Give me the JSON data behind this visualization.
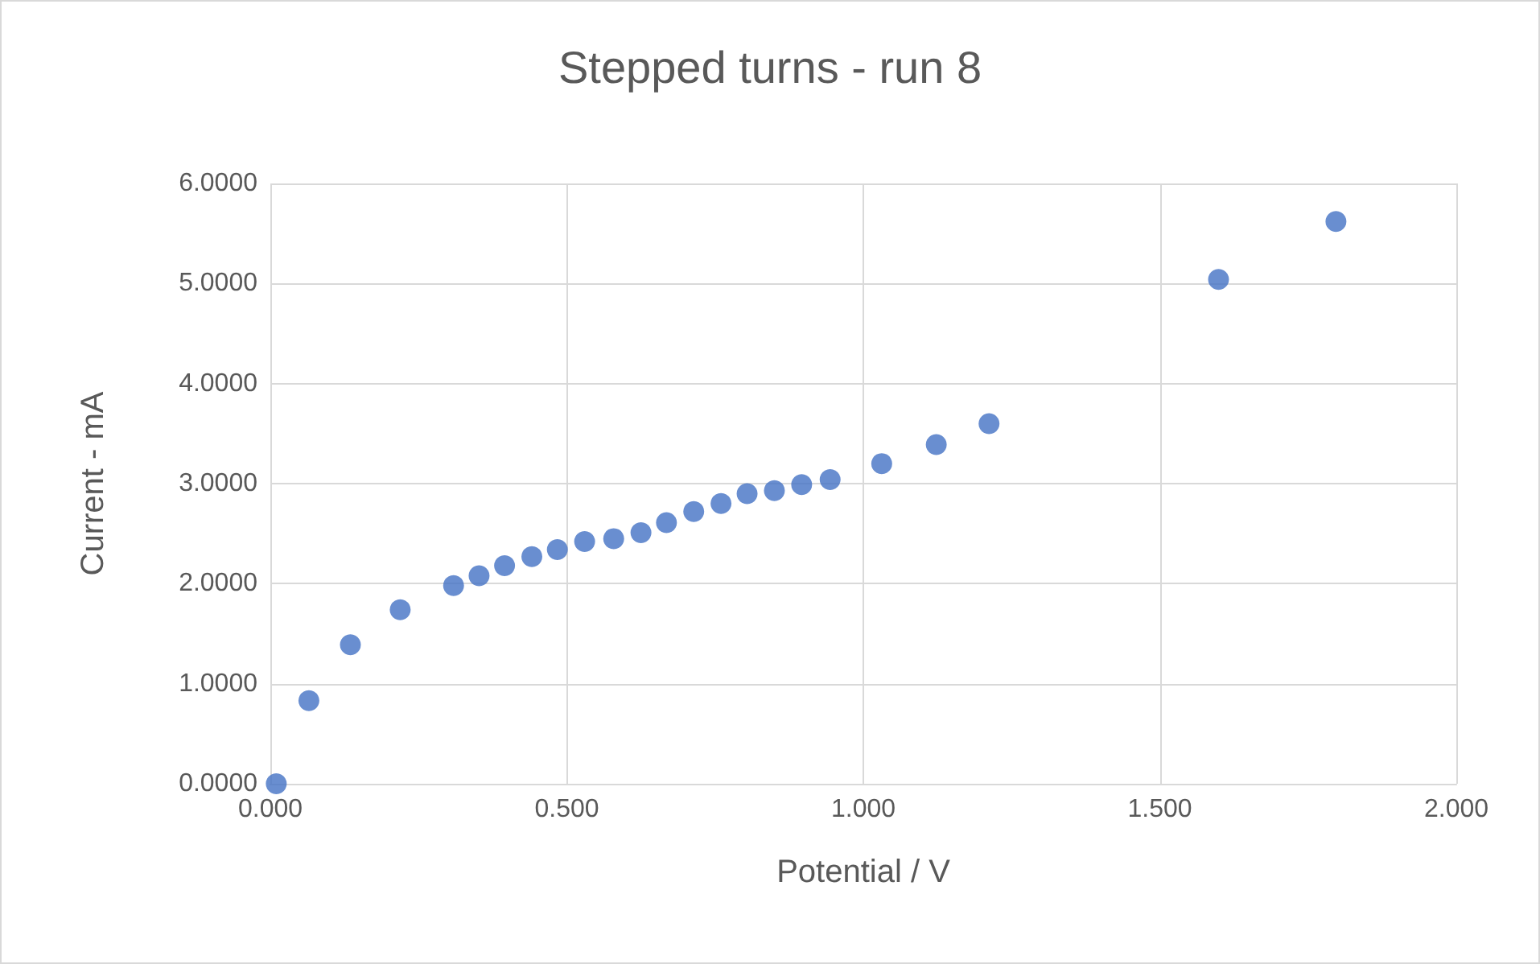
{
  "chart_data": {
    "type": "scatter",
    "title": "Stepped turns - run 8",
    "xlabel": "Potential / V",
    "ylabel": "Current - mA",
    "x": [
      0.01,
      0.065,
      0.135,
      0.219,
      0.309,
      0.352,
      0.395,
      0.441,
      0.484,
      0.53,
      0.579,
      0.625,
      0.668,
      0.714,
      0.76,
      0.804,
      0.85,
      0.896,
      0.944,
      1.031,
      1.123,
      1.212,
      1.599,
      1.797
    ],
    "series": [
      {
        "color": "#4472c4",
        "values": [
          0.0,
          0.83,
          1.39,
          1.74,
          1.98,
          2.08,
          2.18,
          2.27,
          2.34,
          2.42,
          2.45,
          2.51,
          2.61,
          2.72,
          2.8,
          2.9,
          2.93,
          2.99,
          3.04,
          3.2,
          3.39,
          3.6,
          5.04,
          5.62
        ]
      }
    ],
    "xlim": [
      0,
      2
    ],
    "ylim": [
      0,
      6
    ],
    "xticks": [
      {
        "value": 0,
        "label": "0.000"
      },
      {
        "value": 0.5,
        "label": "0.500"
      },
      {
        "value": 1,
        "label": "1.000"
      },
      {
        "value": 1.5,
        "label": "1.500"
      },
      {
        "value": 2,
        "label": "2.000"
      }
    ],
    "yticks": [
      {
        "value": 0,
        "label": "0.0000"
      },
      {
        "value": 1,
        "label": "1.0000"
      },
      {
        "value": 2,
        "label": "2.0000"
      },
      {
        "value": 3,
        "label": "3.0000"
      },
      {
        "value": 4,
        "label": "4.0000"
      },
      {
        "value": 5,
        "label": "5.0000"
      },
      {
        "value": 6,
        "label": "6.0000"
      }
    ],
    "grid": true,
    "marker": "circle"
  }
}
